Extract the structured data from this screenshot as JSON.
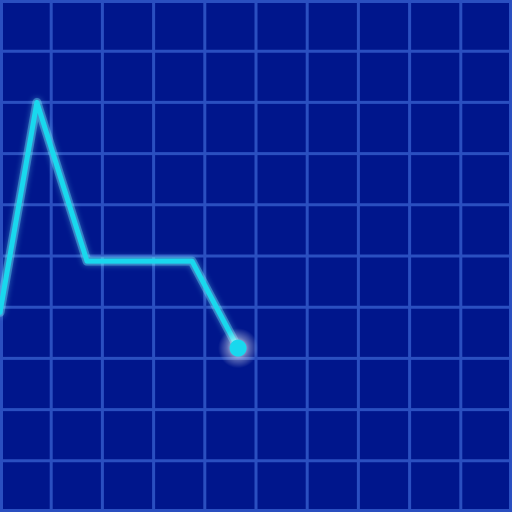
{
  "colors": {
    "background": "#00168c",
    "grid": "#2a4fc0",
    "trace": "#19d8ee",
    "trace_glow": "#6ff3ff",
    "cursor_glow": "#ffffff"
  },
  "chart_data": {
    "type": "line",
    "title": "",
    "xlabel": "",
    "ylabel": "",
    "grid": true,
    "xlim": [
      0,
      10
    ],
    "ylim": [
      0,
      10
    ],
    "grid_divisions": {
      "x": 10,
      "y": 10
    },
    "series": [
      {
        "x": [
          0.0,
          0.72,
          1.7,
          3.75,
          4.65
        ],
        "y": [
          3.9,
          8.0,
          4.9,
          4.9,
          3.2
        ]
      }
    ],
    "cursor": {
      "x": 4.65,
      "y": 3.2
    }
  }
}
